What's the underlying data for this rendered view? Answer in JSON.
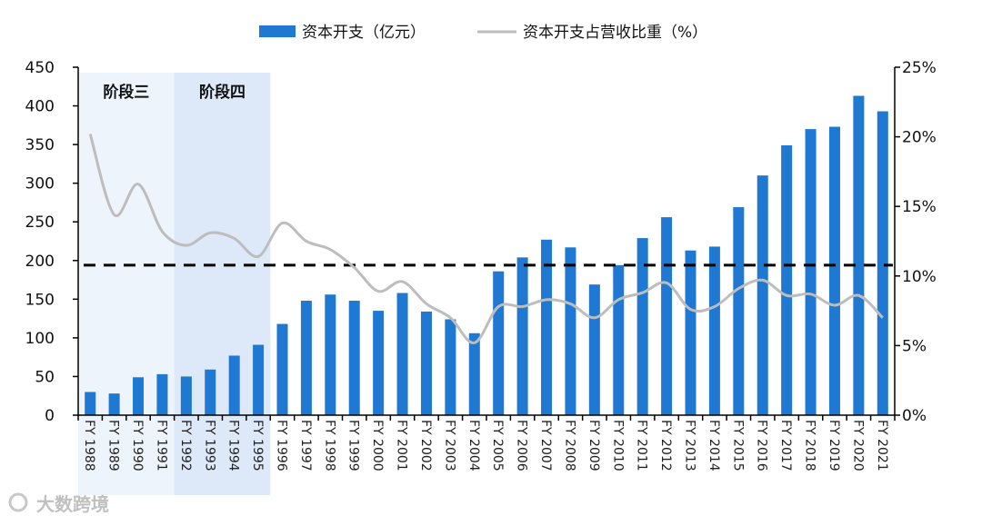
{
  "chart_data": {
    "type": "bar+line",
    "categories": [
      "FY 1988",
      "FY 1989",
      "FY 1990",
      "FY 1991",
      "FY 1992",
      "FY 1993",
      "FY 1994",
      "FY 1995",
      "FY 1996",
      "FY 1997",
      "FY 1998",
      "FY 1999",
      "FY 2000",
      "FY 2001",
      "FY 2002",
      "FY 2003",
      "FY 2004",
      "FY 2005",
      "FY 2006",
      "FY 2007",
      "FY 2008",
      "FY 2009",
      "FY 2010",
      "FY 2011",
      "FY 2012",
      "FY 2013",
      "FY 2014",
      "FY 2015",
      "FY 2016",
      "FY 2017",
      "FY 2018",
      "FY 2019",
      "FY 2020",
      "FY 2021"
    ],
    "series": [
      {
        "name": "资本开支（亿元）",
        "type": "bar",
        "axis": "left",
        "color": "#1f78d1",
        "values": [
          30,
          28,
          49,
          53,
          50,
          59,
          77,
          91,
          118,
          148,
          156,
          148,
          135,
          158,
          134,
          124,
          106,
          186,
          204,
          227,
          217,
          169,
          194,
          229,
          256,
          213,
          218,
          269,
          310,
          349,
          370,
          373,
          413,
          393
        ]
      },
      {
        "name": "资本开支占营收比重（%）",
        "type": "line",
        "axis": "right",
        "color": "#bdbdbd",
        "values": [
          20.2,
          14.4,
          16.6,
          13.2,
          12.2,
          13.1,
          12.7,
          11.4,
          13.8,
          12.5,
          11.9,
          10.6,
          8.9,
          9.6,
          8.0,
          7.0,
          5.2,
          7.8,
          7.8,
          8.3,
          8.0,
          7.0,
          8.3,
          8.8,
          9.5,
          7.6,
          7.8,
          9.1,
          9.7,
          8.6,
          8.7,
          7.9,
          8.6,
          7.0
        ]
      }
    ],
    "left_axis": {
      "ylim": [
        0,
        450
      ],
      "ticks": [
        "0",
        "50",
        "100",
        "150",
        "200",
        "250",
        "300",
        "350",
        "400",
        "450"
      ]
    },
    "right_axis": {
      "ylim": [
        0,
        25
      ],
      "ticks": [
        "0%",
        "5%",
        "10%",
        "15%",
        "20%",
        "25%"
      ]
    },
    "reference_line": {
      "value_left_axis": 194,
      "style": "dashed",
      "color": "#000000"
    },
    "shaded_regions": [
      {
        "label": "阶段三",
        "from": "FY 1988",
        "to": "FY 1991",
        "color": "#eef4fc"
      },
      {
        "label": "阶段四",
        "from": "FY 1992",
        "to": "FY 1995",
        "color": "#dde8f8"
      }
    ],
    "legend_placement": "top-center",
    "grid": false
  },
  "watermark": "大数跨境"
}
